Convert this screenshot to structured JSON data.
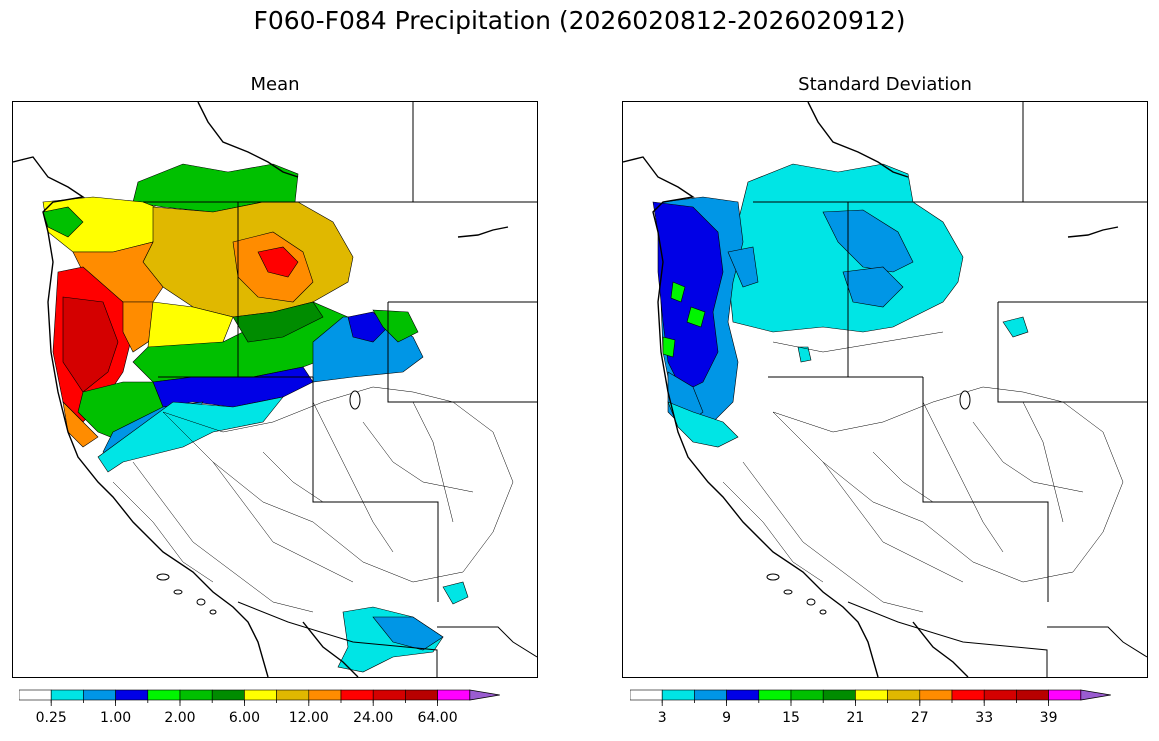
{
  "figure": {
    "title": "F060-F084 Precipitation (2026020812-2026020912)"
  },
  "panels": [
    {
      "id": "mean",
      "title": "Mean",
      "colorbar": {
        "colors": [
          "#ffffff",
          "#00e5e5",
          "#0096e6",
          "#0000e6",
          "#00f500",
          "#00c000",
          "#008c00",
          "#ffff00",
          "#e0b800",
          "#ff8c00",
          "#ff0000",
          "#d40000",
          "#b80000",
          "#ff00ff",
          "#9a5cd0"
        ],
        "tick_labels": [
          "0.25",
          "1.00",
          "2.00",
          "6.00",
          "12.00",
          "24.00",
          "64.00"
        ],
        "extend": "max"
      },
      "regions": [
        {
          "name": "wa-coast",
          "color": "#ffff00"
        },
        {
          "name": "north-cascades",
          "color": "#00c000"
        },
        {
          "name": "columbia-basin",
          "color": "#e0b800"
        },
        {
          "name": "or-coast-range",
          "color": "#ff0000"
        },
        {
          "name": "ca-north-coast",
          "color": "#d40000"
        },
        {
          "name": "idaho-mountains",
          "color": "#ff8c00"
        },
        {
          "name": "montana-west",
          "color": "#e0b800"
        },
        {
          "name": "wyoming-west",
          "color": "#0096e6"
        },
        {
          "name": "great-basin-north",
          "color": "#0000e6"
        },
        {
          "name": "sierra-north",
          "color": "#00e5e5"
        },
        {
          "name": "arizona-east",
          "color": "#0096e6"
        }
      ]
    },
    {
      "id": "stddev",
      "title": "Standard Deviation",
      "colorbar": {
        "colors": [
          "#ffffff",
          "#00e5e5",
          "#0096e6",
          "#0000e6",
          "#00f500",
          "#00c000",
          "#008c00",
          "#ffff00",
          "#e0b800",
          "#ff8c00",
          "#ff0000",
          "#d40000",
          "#b80000",
          "#ff00ff",
          "#9a5cd0"
        ],
        "tick_labels": [
          "3",
          "9",
          "15",
          "21",
          "27",
          "33",
          "39"
        ],
        "extend": "max"
      },
      "regions": [
        {
          "name": "wa-coast",
          "color": "#0000e6"
        },
        {
          "name": "or-coast",
          "color": "#0000e6"
        },
        {
          "name": "or-coast-green",
          "color": "#00f500"
        },
        {
          "name": "cascades",
          "color": "#0096e6"
        },
        {
          "name": "northern-rockies",
          "color": "#00e5e5"
        },
        {
          "name": "montana-core",
          "color": "#0096e6"
        },
        {
          "name": "ca-north",
          "color": "#0096e6"
        }
      ]
    }
  ]
}
